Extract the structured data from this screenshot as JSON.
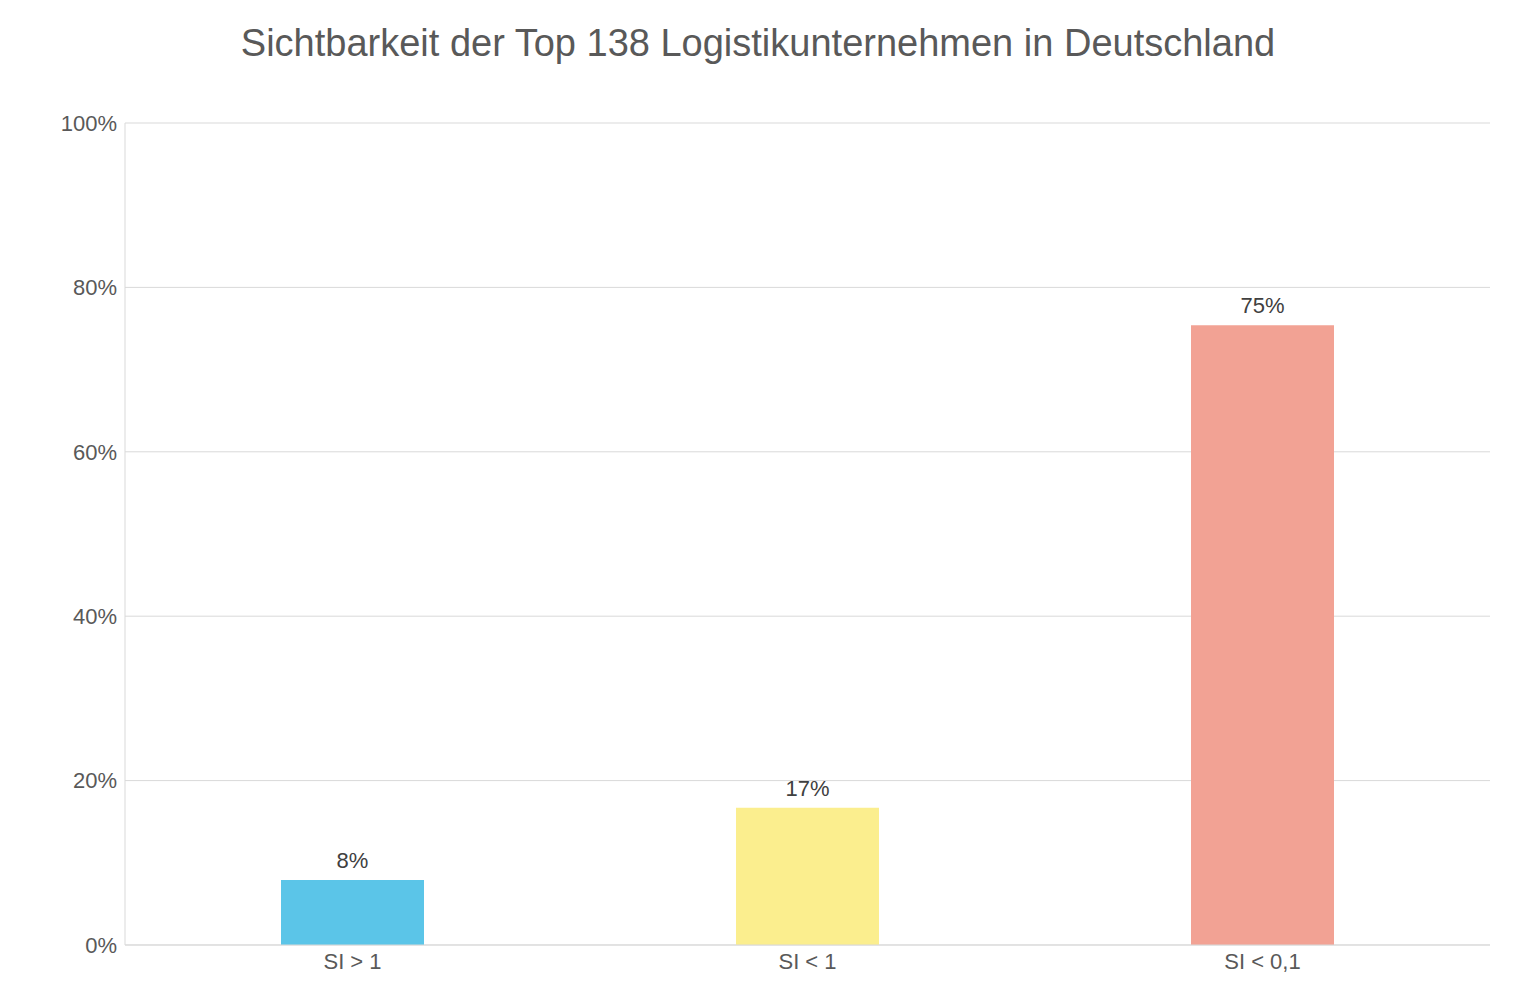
{
  "chart_data": {
    "type": "bar",
    "title": "Sichtbarkeit der Top 138 Logistikunternehmen in Deutschland",
    "categories": [
      "SI > 1",
      "SI < 1",
      "SI < 0,1"
    ],
    "values": [
      7.9,
      16.7,
      75.4
    ],
    "value_labels": [
      "8%",
      "17%",
      "75%"
    ],
    "colors": [
      "#5bc5e8",
      "#fbee8e",
      "#f2a294"
    ],
    "ylim": [
      0,
      100
    ],
    "yticks": [
      {
        "value": 0,
        "label": "0%"
      },
      {
        "value": 20,
        "label": "20%"
      },
      {
        "value": 40,
        "label": "40%"
      },
      {
        "value": 60,
        "label": "60%"
      },
      {
        "value": 80,
        "label": "80%"
      },
      {
        "value": 100,
        "label": "100%"
      }
    ],
    "grid": true,
    "data_labels": true
  }
}
